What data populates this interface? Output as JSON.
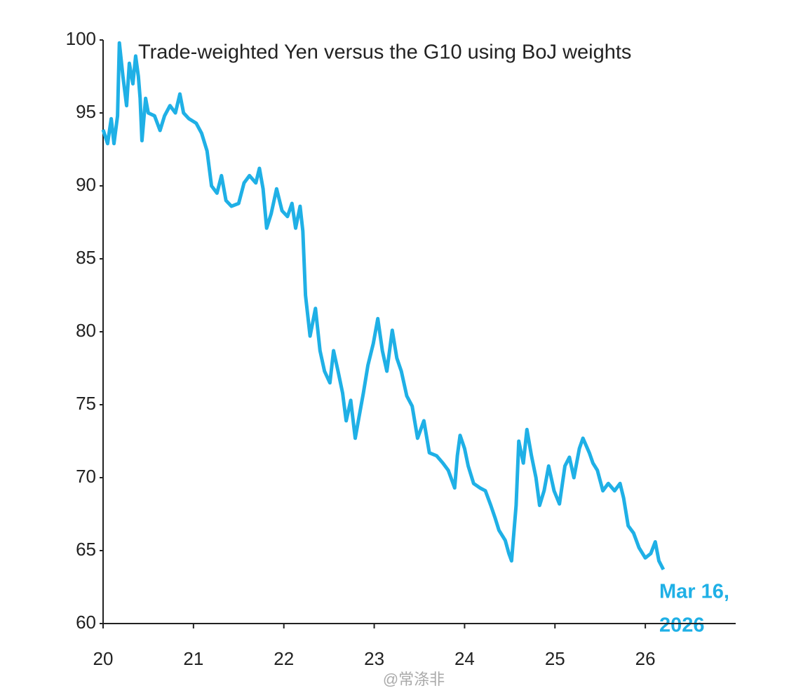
{
  "chart_data": {
    "type": "line",
    "title": "Trade-weighted Yen versus the G10 using BoJ weights",
    "annotation": [
      "Mar 16,",
      "2026"
    ],
    "watermark": "@常涤非",
    "x": [
      20.0,
      20.05,
      20.09,
      20.12,
      20.16,
      20.18,
      20.22,
      20.26,
      20.29,
      20.33,
      20.36,
      20.39,
      20.41,
      20.43,
      20.47,
      20.5,
      20.57,
      20.63,
      20.68,
      20.74,
      20.8,
      20.85,
      20.89,
      20.95,
      21.03,
      21.09,
      21.15,
      21.2,
      21.26,
      21.31,
      21.36,
      21.42,
      21.5,
      21.56,
      21.62,
      21.69,
      21.73,
      21.77,
      21.81,
      21.86,
      21.92,
      21.98,
      22.04,
      22.09,
      22.13,
      22.18,
      22.21,
      22.24,
      22.29,
      22.35,
      22.4,
      22.45,
      22.51,
      22.55,
      22.6,
      22.65,
      22.69,
      22.74,
      22.79,
      22.83,
      22.88,
      22.93,
      22.99,
      23.04,
      23.09,
      23.14,
      23.2,
      23.25,
      23.3,
      23.36,
      23.42,
      23.48,
      23.55,
      23.61,
      23.69,
      23.76,
      23.82,
      23.89,
      23.92,
      23.95,
      24.0,
      24.04,
      24.1,
      24.17,
      24.23,
      24.29,
      24.34,
      24.38,
      24.45,
      24.49,
      24.52,
      24.57,
      24.6,
      24.65,
      24.69,
      24.74,
      24.79,
      24.83,
      24.88,
      24.93,
      24.99,
      25.05,
      25.11,
      25.16,
      25.21,
      25.27,
      25.31,
      25.38,
      25.42,
      25.47,
      25.53,
      25.59,
      25.66,
      25.72,
      25.76,
      25.81,
      25.87,
      25.93,
      26.0,
      26.06,
      26.11,
      26.15,
      26.2
    ],
    "series": [
      {
        "name": "Trade-weighted Yen",
        "color": "#1fb0e6",
        "values": [
          93.85,
          92.9,
          94.6,
          92.9,
          94.8,
          99.8,
          97.5,
          95.5,
          98.4,
          97.0,
          98.9,
          97.5,
          96.0,
          93.1,
          96.0,
          95.0,
          94.8,
          93.8,
          94.8,
          95.5,
          95.0,
          96.3,
          95.0,
          94.6,
          94.3,
          93.6,
          92.4,
          90.0,
          89.5,
          90.7,
          89.0,
          88.6,
          88.8,
          90.2,
          90.7,
          90.2,
          91.2,
          89.8,
          87.1,
          88.1,
          89.8,
          88.3,
          87.9,
          88.8,
          87.1,
          88.6,
          86.9,
          82.5,
          79.7,
          81.6,
          78.7,
          77.3,
          76.5,
          78.7,
          77.3,
          75.8,
          73.9,
          75.3,
          72.7,
          74.1,
          75.8,
          77.7,
          79.2,
          80.9,
          78.7,
          77.3,
          80.1,
          78.2,
          77.3,
          75.6,
          74.9,
          72.7,
          73.9,
          71.7,
          71.5,
          71.0,
          70.5,
          69.3,
          71.5,
          72.9,
          72.0,
          70.8,
          69.6,
          69.3,
          69.1,
          68.1,
          67.2,
          66.4,
          65.7,
          64.8,
          64.3,
          68.1,
          72.5,
          71.0,
          73.3,
          71.5,
          70.0,
          68.1,
          69.1,
          70.8,
          69.1,
          68.2,
          70.8,
          71.4,
          70.0,
          72.0,
          72.7,
          71.7,
          71.0,
          70.5,
          69.1,
          69.6,
          69.1,
          69.6,
          68.6,
          66.7,
          66.2,
          65.2,
          64.5,
          64.8,
          65.6,
          64.3,
          63.7
        ]
      }
    ],
    "xlim": [
      20,
      27
    ],
    "xticks": [
      20,
      21,
      22,
      23,
      24,
      25,
      26
    ],
    "ylim": [
      60,
      100
    ],
    "yticks": [
      60,
      65,
      70,
      75,
      80,
      85,
      90,
      95,
      100
    ],
    "grid": false
  }
}
